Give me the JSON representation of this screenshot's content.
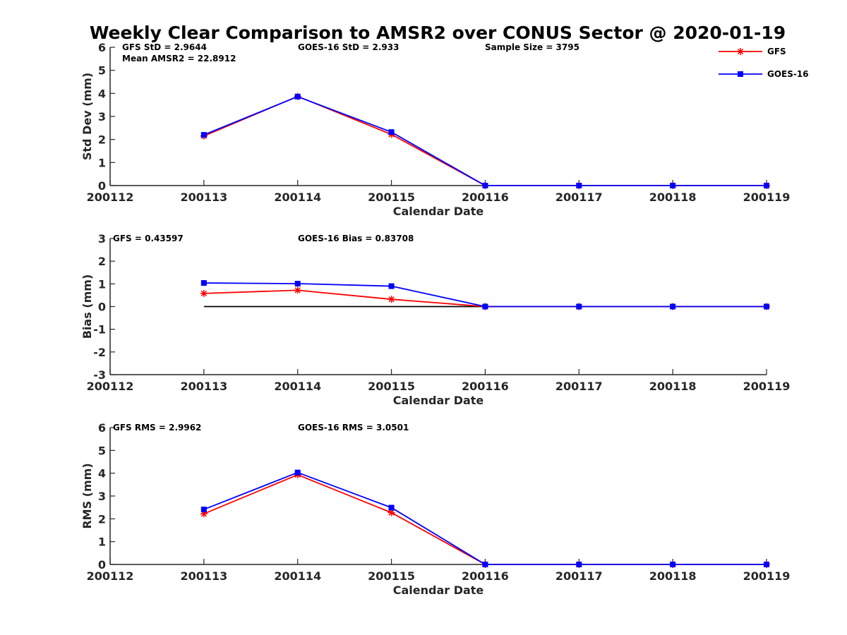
{
  "title": "Weekly Clear Comparison to AMSR2 over CONUS Sector @ 2020-01-19",
  "legend": {
    "placement": "top-right",
    "entries": [
      {
        "name": "GFS",
        "color": "#ff0000",
        "marker": "asterisk"
      },
      {
        "name": "GOES-16",
        "color": "#0000ff",
        "marker": "square"
      }
    ]
  },
  "chart_data": [
    {
      "type": "line",
      "xlabel": "Calendar Date",
      "ylabel": "Std Dev (mm)",
      "ylim": [
        0,
        6
      ],
      "yticks": [
        "0",
        "1",
        "2",
        "3",
        "4",
        "5",
        "6"
      ],
      "categories": [
        "200112",
        "200113",
        "200114",
        "200115",
        "200116",
        "200117",
        "200118",
        "200119"
      ],
      "annotations": [
        "GFS StD = 2.9644",
        "GOES-16 StD = 2.933",
        "Sample Size = 3795",
        "Mean AMSR2 = 22.8912"
      ],
      "series": [
        {
          "name": "GFS",
          "color": "#ff0000",
          "marker": "asterisk",
          "values": [
            null,
            2.15,
            3.87,
            2.22,
            0,
            0,
            0,
            0
          ]
        },
        {
          "name": "GOES-16",
          "color": "#0000ff",
          "marker": "square",
          "values": [
            null,
            2.2,
            3.86,
            2.32,
            0,
            0,
            0,
            0
          ]
        }
      ]
    },
    {
      "type": "line",
      "xlabel": "Calendar Date",
      "ylabel": "Bias (mm)",
      "ylim": [
        -3,
        3
      ],
      "yticks": [
        "-3",
        "-2",
        "-1",
        "0",
        "1",
        "2",
        "3"
      ],
      "categories": [
        "200112",
        "200113",
        "200114",
        "200115",
        "200116",
        "200117",
        "200118",
        "200119"
      ],
      "annotations": [
        "GFS = 0.43597",
        "GOES-16 Bias  = 0.83708"
      ],
      "zero_line": {
        "x_from": "200113",
        "x_to": "200119",
        "y": 0
      },
      "series": [
        {
          "name": "GFS",
          "color": "#ff0000",
          "marker": "asterisk",
          "values": [
            null,
            0.58,
            0.72,
            0.32,
            0,
            0,
            0,
            0
          ]
        },
        {
          "name": "GOES-16",
          "color": "#0000ff",
          "marker": "square",
          "values": [
            null,
            1.04,
            1.01,
            0.9,
            0,
            0,
            0,
            0
          ]
        }
      ]
    },
    {
      "type": "line",
      "xlabel": "Calendar Date",
      "ylabel": "RMS (mm)",
      "ylim": [
        0,
        6
      ],
      "yticks": [
        "0",
        "1",
        "2",
        "3",
        "4",
        "5",
        "6"
      ],
      "categories": [
        "200112",
        "200113",
        "200114",
        "200115",
        "200116",
        "200117",
        "200118",
        "200119"
      ],
      "annotations": [
        "GFS RMS = 2.9962",
        "GOES-16 RMS = 3.0501"
      ],
      "series": [
        {
          "name": "GFS",
          "color": "#ff0000",
          "marker": "asterisk",
          "values": [
            null,
            2.22,
            3.93,
            2.27,
            0,
            0,
            0,
            0
          ]
        },
        {
          "name": "GOES-16",
          "color": "#0000ff",
          "marker": "square",
          "values": [
            null,
            2.41,
            4.03,
            2.49,
            0,
            0,
            0,
            0
          ]
        }
      ]
    }
  ]
}
